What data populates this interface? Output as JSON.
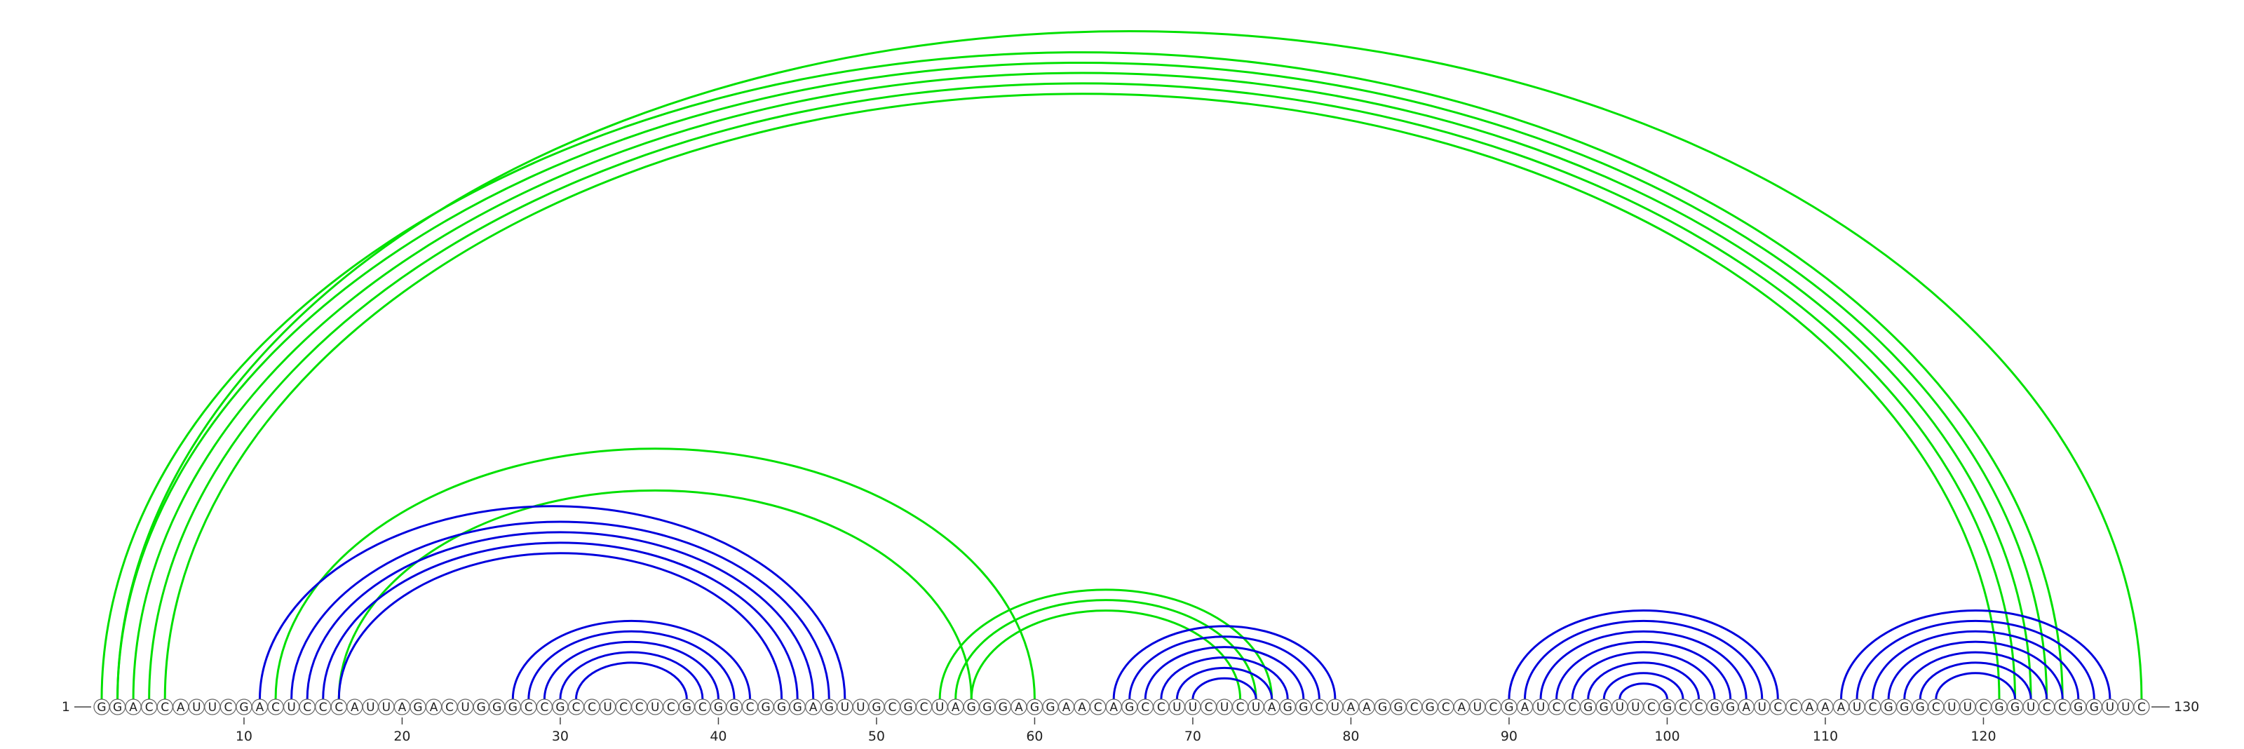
{
  "sequence": [
    "G",
    "G",
    "A",
    "C",
    "C",
    "A",
    "U",
    "U",
    "C",
    "G",
    "A",
    "C",
    "U",
    "C",
    "C",
    "C",
    "A",
    "U",
    "U",
    "A",
    "G",
    "A",
    "C",
    "U",
    "G",
    "G",
    "G",
    "C",
    "C",
    "G",
    "C",
    "C",
    "U",
    "C",
    "C",
    "U",
    "C",
    "G",
    "C",
    "G",
    "G",
    "C",
    "G",
    "G",
    "G",
    "A",
    "G",
    "U",
    "U",
    "G",
    "C",
    "G",
    "C",
    "U",
    "A",
    "G",
    "G",
    "G",
    "A",
    "G",
    "G",
    "A",
    "A",
    "C",
    "A",
    "G",
    "C",
    "C",
    "U",
    "U",
    "C",
    "U",
    "C",
    "U",
    "A",
    "G",
    "G",
    "C",
    "U",
    "A",
    "A",
    "G",
    "G",
    "C",
    "G",
    "C",
    "A",
    "U",
    "C",
    "G",
    "A",
    "U",
    "C",
    "C",
    "G",
    "G",
    "U",
    "U",
    "C",
    "G",
    "C",
    "C",
    "G",
    "G",
    "A",
    "U",
    "C",
    "C",
    "A",
    "A",
    "A",
    "U",
    "C",
    "G",
    "G",
    "G",
    "C",
    "U",
    "U",
    "C",
    "G",
    "G",
    "U",
    "C",
    "C",
    "G",
    "G",
    "U",
    "U",
    "C"
  ],
  "start": 1,
  "end": 130,
  "ticks": [
    10,
    20,
    30,
    40,
    50,
    60,
    70,
    80,
    90,
    100,
    110,
    120
  ],
  "arc_groups": [
    {
      "color": "#00e000",
      "pairs": [
        [
          1,
          125
        ],
        [
          2,
          130
        ],
        [
          2,
          124
        ],
        [
          3,
          123
        ],
        [
          4,
          122
        ],
        [
          5,
          121
        ],
        [
          12,
          60
        ],
        [
          16,
          56
        ],
        [
          54,
          75
        ],
        [
          55,
          74
        ],
        [
          56,
          73
        ]
      ]
    },
    {
      "color": "#0000dd",
      "pairs": [
        [
          11,
          48
        ],
        [
          13,
          47
        ],
        [
          14,
          46
        ],
        [
          15,
          45
        ],
        [
          16,
          44
        ],
        [
          27,
          42
        ],
        [
          28,
          41
        ],
        [
          29,
          40
        ],
        [
          30,
          39
        ],
        [
          31,
          38
        ],
        [
          65,
          79
        ],
        [
          66,
          78
        ],
        [
          67,
          77
        ],
        [
          68,
          76
        ],
        [
          69,
          75
        ],
        [
          70,
          74
        ],
        [
          90,
          107
        ],
        [
          91,
          106
        ],
        [
          92,
          105
        ],
        [
          93,
          104
        ],
        [
          94,
          103
        ],
        [
          95,
          102
        ],
        [
          96,
          101
        ],
        [
          97,
          100
        ],
        [
          111,
          128
        ],
        [
          112,
          127
        ],
        [
          113,
          126
        ],
        [
          114,
          125
        ],
        [
          115,
          124
        ],
        [
          116,
          123
        ],
        [
          117,
          122
        ]
      ]
    }
  ]
}
